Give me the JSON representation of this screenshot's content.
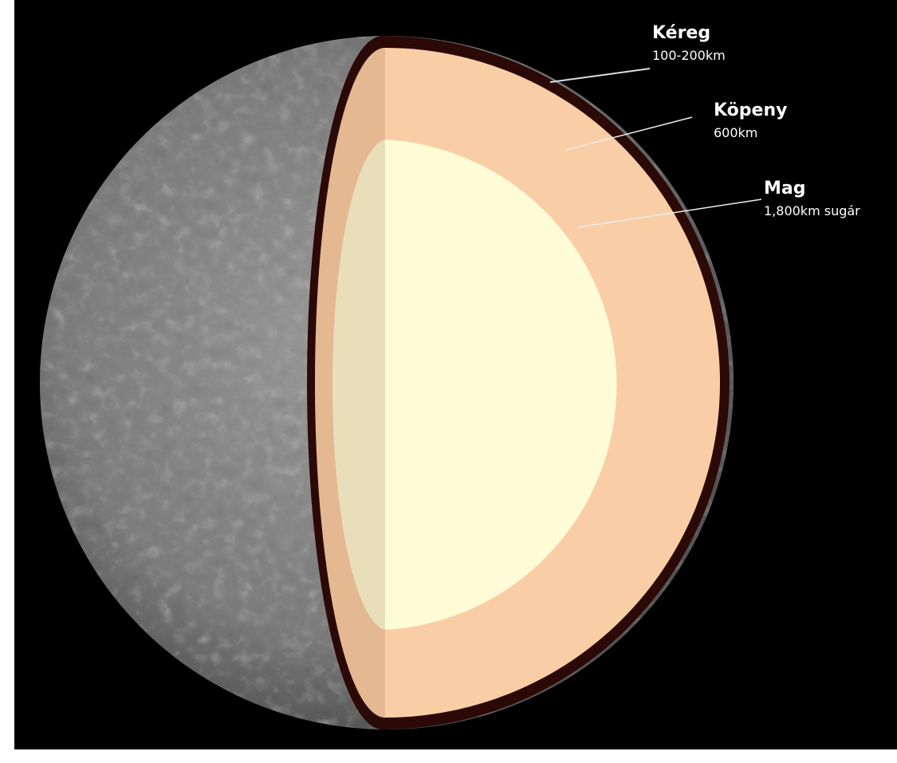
{
  "layers": [
    {
      "name": "Kéreg",
      "detail": "100-200km"
    },
    {
      "name": "Köpeny",
      "detail": "600km"
    },
    {
      "name": "Mag",
      "detail": "1,800km sugár"
    }
  ]
}
